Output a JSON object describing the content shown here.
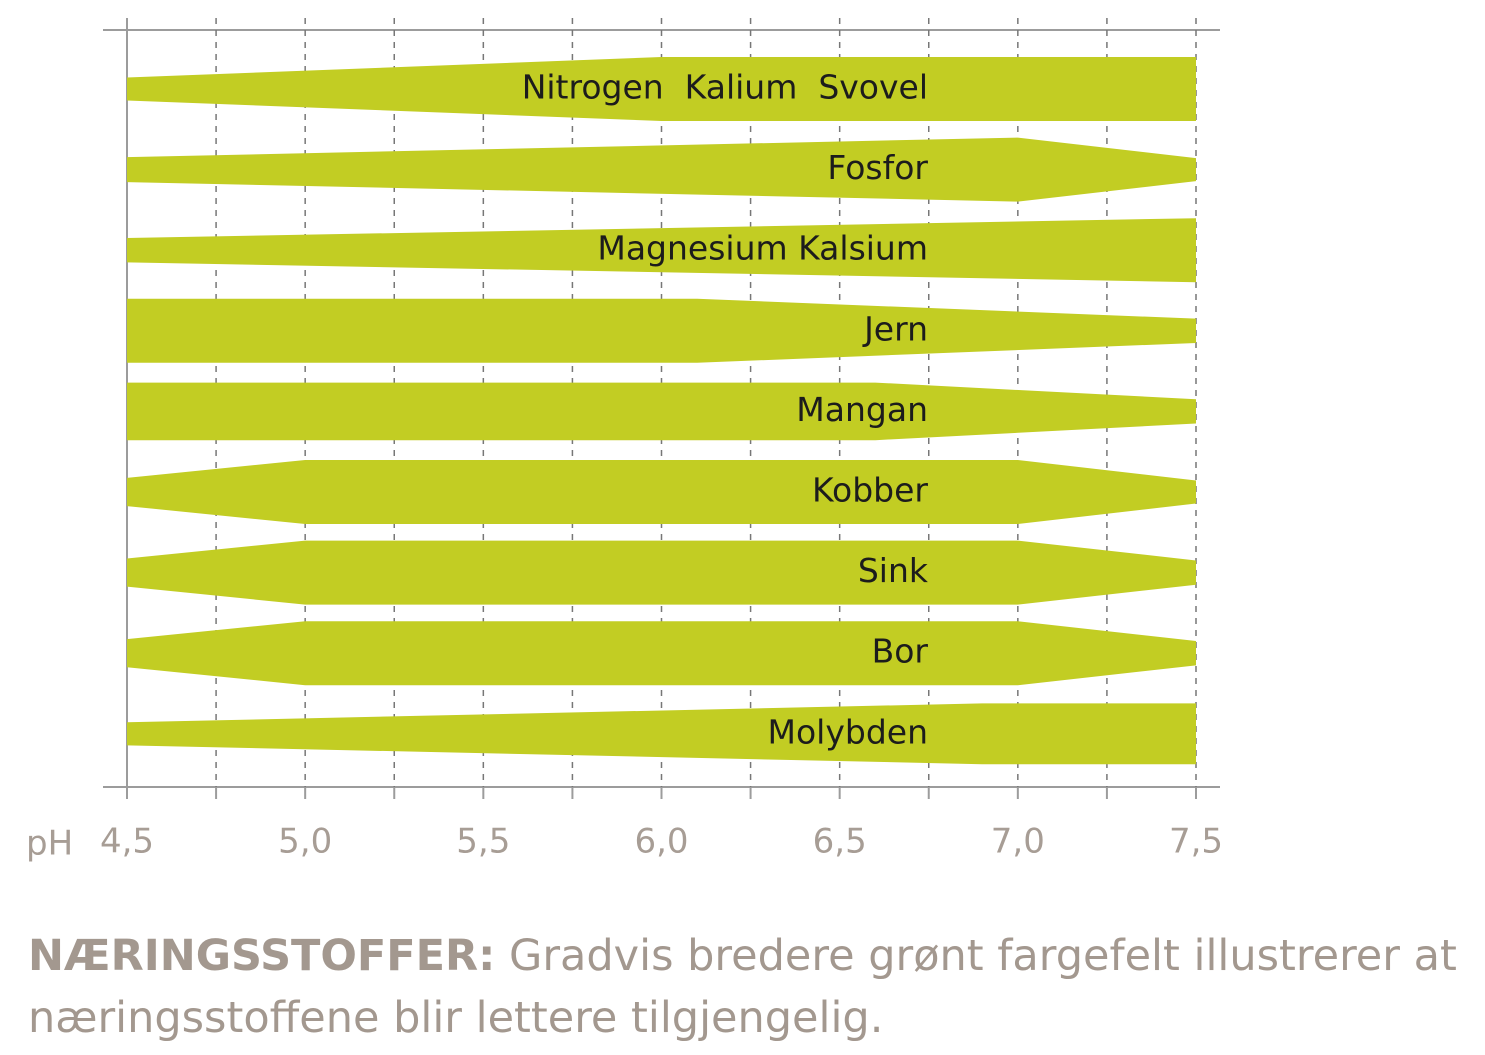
{
  "chart_data": {
    "type": "band",
    "color": "#c2cd23",
    "x_label": "pH",
    "xlim": [
      4.5,
      7.5
    ],
    "xticks": [
      {
        "value": 4.5,
        "label": "4,5"
      },
      {
        "value": 5.0,
        "label": "5,0"
      },
      {
        "value": 5.5,
        "label": "5,5"
      },
      {
        "value": 6.0,
        "label": "6,0"
      },
      {
        "value": 6.5,
        "label": "6,5"
      },
      {
        "value": 7.0,
        "label": "7,0"
      },
      {
        "value": 7.5,
        "label": "7,5"
      }
    ],
    "xminor_ticks": [
      4.75,
      5.25,
      5.75,
      6.25,
      6.75,
      7.25
    ],
    "grid": true,
    "series": [
      {
        "name": "Nitrogen  Kalium  Svovel",
        "x": [
          4.5,
          6.0,
          7.5
        ],
        "values": [
          0.36,
          1.0,
          1.0
        ]
      },
      {
        "name": "Fosfor",
        "x": [
          4.5,
          7.0,
          7.5
        ],
        "values": [
          0.39,
          1.0,
          0.36
        ]
      },
      {
        "name": "Magnesium Kalsium",
        "x": [
          4.5,
          7.5
        ],
        "values": [
          0.38,
          1.0
        ]
      },
      {
        "name": "Jern",
        "x": [
          4.5,
          6.1,
          7.5
        ],
        "values": [
          1.0,
          1.0,
          0.38
        ]
      },
      {
        "name": "Mangan",
        "x": [
          4.5,
          6.6,
          7.5
        ],
        "values": [
          0.9,
          0.9,
          0.38
        ]
      },
      {
        "name": "Kobber",
        "x": [
          4.5,
          5.0,
          7.0,
          7.5
        ],
        "values": [
          0.44,
          1.0,
          1.0,
          0.36
        ]
      },
      {
        "name": "Sink",
        "x": [
          4.5,
          5.0,
          7.0,
          7.5
        ],
        "values": [
          0.44,
          1.0,
          1.0,
          0.38
        ]
      },
      {
        "name": "Bor",
        "x": [
          4.5,
          5.0,
          7.0,
          7.5
        ],
        "values": [
          0.44,
          1.0,
          1.0,
          0.38
        ]
      },
      {
        "name": "Molybden",
        "x": [
          4.5,
          6.9,
          7.5
        ],
        "values": [
          0.36,
          0.95,
          0.95
        ]
      }
    ],
    "caption_label": "NÆRINGSSTOFFER:",
    "caption_lines": [
      "Gradvis bredere grønt fargefelt illustrerer at",
      "næringsstoffene blir lettere tilgjengelig."
    ]
  }
}
